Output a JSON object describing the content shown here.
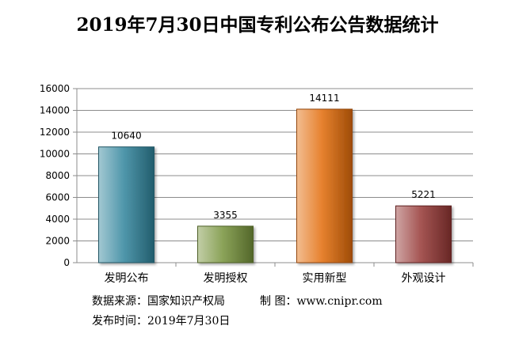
{
  "chart_data": {
    "type": "bar",
    "title": "2019年7月30日中国专利公布公告数据统计",
    "categories": [
      "发明公布",
      "发明授权",
      "实用新型",
      "外观设计"
    ],
    "values": [
      10640,
      3355,
      14111,
      5221
    ],
    "data_labels": [
      "10640",
      "3355",
      "14111",
      "5221"
    ],
    "bar_colors": [
      "#31859c",
      "#77933c",
      "#e36c0a",
      "#953735"
    ],
    "ylim": [
      0,
      16000
    ],
    "y_ticks": [
      0,
      2000,
      4000,
      6000,
      8000,
      10000,
      12000,
      14000,
      16000
    ],
    "grid": true,
    "legend": "none"
  },
  "footer": {
    "source": "数据来源：国家知识产权局",
    "made_by": "制 图：www.cnipr.com",
    "published": "发布时间：2019年7月30日"
  }
}
